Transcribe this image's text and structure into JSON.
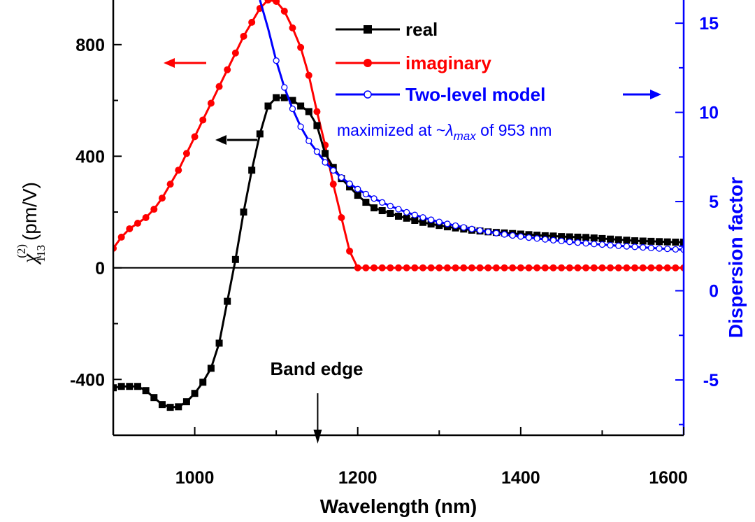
{
  "chart_data": {
    "type": "line",
    "title": "",
    "xlabel": "Wavelength (nm)",
    "ylabel_left": {
      "symbol": "χ",
      "superscript": "(2)",
      "subscript": "113",
      "unit": "(pm/V)"
    },
    "ylabel_right": "Dispersion factor",
    "xlim": [
      900,
      1600
    ],
    "ylim_left": [
      -600,
      960
    ],
    "ylim_right": [
      -8.1,
      16.3
    ],
    "xticks": [
      1000,
      1200,
      1400,
      1600
    ],
    "yticks_left": [
      -400,
      0,
      400,
      800
    ],
    "yticks_right": [
      -5,
      0,
      5,
      10,
      15
    ],
    "series": [
      {
        "name": "real",
        "axis": "left",
        "color": "#000000",
        "marker": "square",
        "x": [
          900,
          910,
          920,
          930,
          940,
          950,
          960,
          970,
          980,
          990,
          1000,
          1010,
          1020,
          1030,
          1040,
          1050,
          1060,
          1070,
          1080,
          1090,
          1100,
          1110,
          1120,
          1130,
          1140,
          1150,
          1160,
          1170,
          1180,
          1190,
          1200,
          1210,
          1220,
          1230,
          1240,
          1250,
          1260,
          1270,
          1280,
          1290,
          1300,
          1310,
          1320,
          1330,
          1340,
          1350,
          1360,
          1370,
          1380,
          1390,
          1400,
          1410,
          1420,
          1430,
          1440,
          1450,
          1460,
          1470,
          1480,
          1490,
          1500,
          1510,
          1520,
          1530,
          1540,
          1550,
          1560,
          1570,
          1580,
          1590,
          1600
        ],
        "values": [
          -430,
          -425,
          -425,
          -425,
          -440,
          -465,
          -490,
          -500,
          -498,
          -480,
          -450,
          -410,
          -360,
          -270,
          -120,
          30,
          200,
          350,
          480,
          580,
          610,
          610,
          600,
          580,
          560,
          510,
          410,
          360,
          320,
          290,
          260,
          235,
          215,
          205,
          195,
          185,
          178,
          170,
          163,
          157,
          152,
          147,
          143,
          139,
          135,
          132,
          129,
          127,
          125,
          123,
          121,
          119,
          117,
          115,
          114,
          112,
          111,
          110,
          109,
          107,
          105,
          103,
          101,
          99,
          97,
          96,
          95,
          94,
          93,
          92,
          92
        ]
      },
      {
        "name": "imaginary",
        "axis": "left",
        "color": "#ff0000",
        "marker": "circle",
        "x": [
          900,
          910,
          920,
          930,
          940,
          950,
          960,
          970,
          980,
          990,
          1000,
          1010,
          1020,
          1030,
          1040,
          1050,
          1060,
          1070,
          1080,
          1090,
          1100,
          1110,
          1120,
          1130,
          1140,
          1150,
          1160,
          1170,
          1180,
          1190,
          1200,
          1210,
          1220,
          1230,
          1240,
          1250,
          1260,
          1270,
          1280,
          1290,
          1300,
          1310,
          1320,
          1330,
          1340,
          1350,
          1360,
          1370,
          1380,
          1390,
          1400,
          1410,
          1420,
          1430,
          1440,
          1450,
          1460,
          1470,
          1480,
          1490,
          1500,
          1510,
          1520,
          1530,
          1540,
          1550,
          1560,
          1570,
          1580,
          1590,
          1600
        ],
        "values": [
          70,
          110,
          140,
          160,
          180,
          210,
          250,
          300,
          350,
          410,
          470,
          530,
          590,
          650,
          710,
          770,
          830,
          880,
          930,
          960,
          955,
          920,
          860,
          790,
          690,
          560,
          440,
          300,
          180,
          60,
          0,
          0,
          0,
          0,
          0,
          0,
          0,
          0,
          0,
          0,
          0,
          0,
          0,
          0,
          0,
          0,
          0,
          0,
          0,
          0,
          0,
          0,
          0,
          0,
          0,
          0,
          0,
          0,
          0,
          0,
          0,
          0,
          0,
          0,
          0,
          0,
          0,
          0,
          0,
          0,
          0
        ]
      },
      {
        "name": "Two-level model",
        "axis": "right",
        "color": "#0000ff",
        "marker": "open-circle",
        "marker_start": 1100,
        "x": [
          1080,
          1090,
          1100,
          1110,
          1120,
          1130,
          1140,
          1150,
          1160,
          1170,
          1180,
          1190,
          1200,
          1210,
          1220,
          1230,
          1240,
          1250,
          1260,
          1270,
          1280,
          1290,
          1300,
          1310,
          1320,
          1330,
          1340,
          1350,
          1360,
          1370,
          1380,
          1390,
          1400,
          1410,
          1420,
          1430,
          1440,
          1450,
          1460,
          1470,
          1480,
          1490,
          1500,
          1510,
          1520,
          1530,
          1540,
          1550,
          1560,
          1570,
          1580,
          1590,
          1600
        ],
        "values": [
          16.3,
          14.7,
          12.9,
          11.4,
          10.2,
          9.2,
          8.4,
          7.8,
          7.2,
          6.75,
          6.35,
          6.0,
          5.7,
          5.42,
          5.17,
          4.95,
          4.75,
          4.57,
          4.4,
          4.25,
          4.11,
          3.98,
          3.86,
          3.75,
          3.65,
          3.55,
          3.46,
          3.38,
          3.3,
          3.23,
          3.16,
          3.1,
          3.04,
          2.98,
          2.93,
          2.88,
          2.83,
          2.79,
          2.74,
          2.7,
          2.66,
          2.62,
          2.59,
          2.55,
          2.52,
          2.49,
          2.46,
          2.43,
          2.4,
          2.37,
          2.35,
          2.32,
          2.3
        ]
      }
    ],
    "legend": {
      "position": "top-right",
      "entries": [
        "real",
        "imaginary",
        "Two-level model"
      ]
    },
    "annotations": {
      "maximized_prefix": "maximized at ~",
      "maximized_lambda": "λ",
      "maximized_sub": "max",
      "maximized_suffix": " of 953 nm",
      "band_edge": "Band edge",
      "band_edge_x": 1150
    }
  }
}
